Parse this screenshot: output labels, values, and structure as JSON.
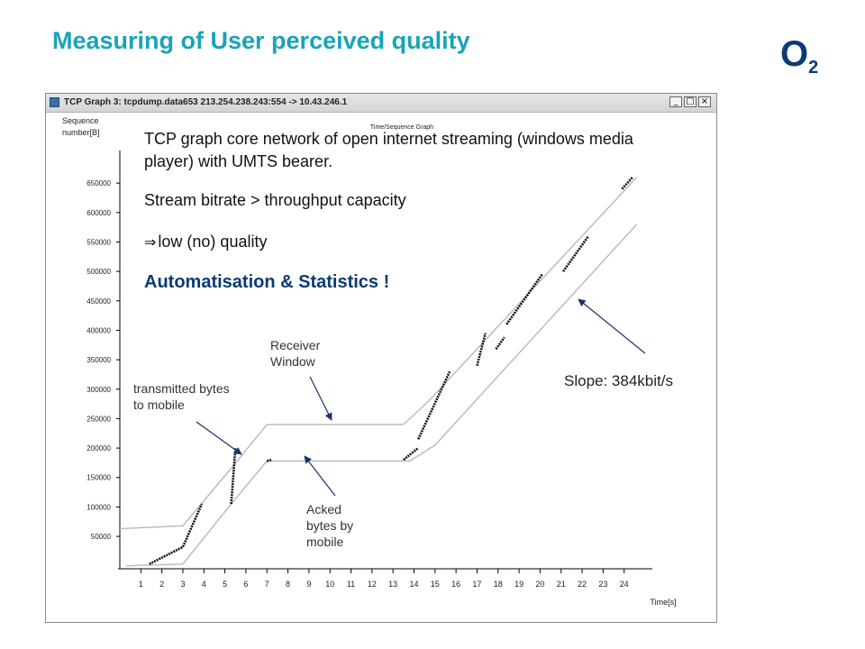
{
  "slide": {
    "title": "Measuring of User perceived quality",
    "logo": {
      "main": "O",
      "sub": "2"
    }
  },
  "window": {
    "title": "TCP Graph 3: tcpdump.data653 213.254.238.243:554 -> 10.43.246.1",
    "controls": {
      "minimize": "_",
      "maximize": "□",
      "close": "×"
    }
  },
  "overlay": {
    "line1": "TCP graph core network of open internet streaming (windows media player) with UMTS bearer.",
    "line2": "Stream bitrate > throughput capacity",
    "line3_arrow": "⇒",
    "line3": "low (no) quality",
    "line4": "Automatisation & Statistics !"
  },
  "annotations": {
    "transmitted": "transmitted bytes to mobile",
    "receiver": "Receiver Window",
    "acked": "Acked bytes by mobile",
    "slope": "Slope: 384kbit/s"
  },
  "colors": {
    "title": "#1aa3b8",
    "logo": "#0a3a73",
    "emphasis": "#0a3a73",
    "plot_line": "#b8b8b8",
    "data_points": "#111111",
    "arrow": "#1a2f6b"
  },
  "chart_data": {
    "type": "line",
    "title": "Time/Sequence Graph",
    "xlabel": "Time[s]",
    "ylabel": "Sequence number[B]",
    "xlim": [
      0,
      25
    ],
    "ylim": [
      -5000,
      690000
    ],
    "x_ticks": [
      1,
      2,
      3,
      4,
      5,
      6,
      7,
      8,
      9,
      10,
      11,
      12,
      13,
      14,
      15,
      16,
      17,
      18,
      19,
      20,
      21,
      22,
      23,
      24
    ],
    "y_ticks": [
      50000,
      100000,
      150000,
      200000,
      250000,
      300000,
      350000,
      400000,
      450000,
      500000,
      550000,
      600000,
      650000
    ],
    "grid": false,
    "series": [
      {
        "name": "Receiver Window",
        "x": [
          0,
          3,
          5.4,
          7,
          13.5,
          14.7,
          24.6
        ],
        "y": [
          63000,
          68000,
          170000,
          240000,
          240000,
          280000,
          660000
        ]
      },
      {
        "name": "Acked bytes by mobile",
        "x": [
          0.3,
          3,
          5.3,
          7,
          13.8,
          15,
          24.6
        ],
        "y": [
          0,
          3000,
          105000,
          178000,
          178000,
          205000,
          580000
        ]
      },
      {
        "name": "transmitted bytes to mobile",
        "segments": [
          {
            "x": [
              1.4,
              3
            ],
            "y": [
              3000,
              32000
            ]
          },
          {
            "x": [
              3,
              3.9
            ],
            "y": [
              32000,
              105000
            ]
          },
          {
            "x": [
              5.3,
              5.5
            ],
            "y": [
              105000,
              200000
            ]
          },
          {
            "x": [
              7,
              7.2
            ],
            "y": [
              178000,
              180000
            ]
          },
          {
            "x": [
              13.5,
              14.2
            ],
            "y": [
              180000,
              200000
            ]
          },
          {
            "x": [
              14.2,
              15.7
            ],
            "y": [
              215000,
              330000
            ]
          },
          {
            "x": [
              17,
              17.4
            ],
            "y": [
              340000,
              395000
            ]
          },
          {
            "x": [
              17.9,
              18.3
            ],
            "y": [
              368000,
              388000
            ]
          },
          {
            "x": [
              18.4,
              20.1
            ],
            "y": [
              410000,
              495000
            ]
          },
          {
            "x": [
              21.1,
              22.3
            ],
            "y": [
              500000,
              560000
            ]
          },
          {
            "x": [
              23.9,
              24.4
            ],
            "y": [
              640000,
              660000
            ]
          }
        ]
      }
    ]
  }
}
